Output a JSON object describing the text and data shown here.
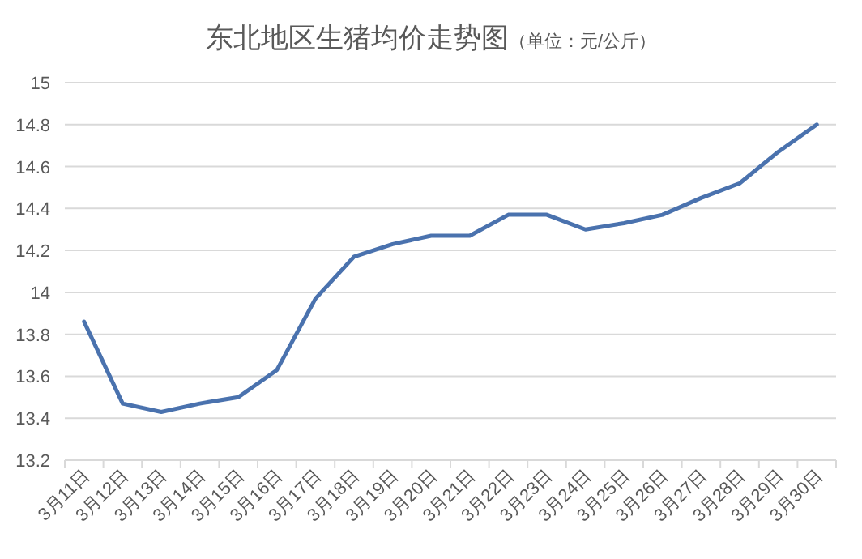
{
  "chart_data": {
    "type": "line",
    "title": "东北地区生猪均价走势图",
    "subtitle": "（单位：元/公斤）",
    "categories": [
      "3月11日",
      "3月12日",
      "3月13日",
      "3月14日",
      "3月15日",
      "3月16日",
      "3月17日",
      "3月18日",
      "3月19日",
      "3月20日",
      "3月21日",
      "3月22日",
      "3月23日",
      "3月24日",
      "3月25日",
      "3月26日",
      "3月27日",
      "3月28日",
      "3月29日",
      "3月30日"
    ],
    "series": [
      {
        "color": "#4a72ae",
        "values": [
          13.86,
          13.47,
          13.43,
          13.47,
          13.5,
          13.63,
          13.97,
          14.17,
          14.23,
          14.27,
          14.27,
          14.37,
          14.37,
          14.3,
          14.33,
          14.37,
          14.45,
          14.52,
          14.67,
          14.8
        ]
      }
    ],
    "ylim": [
      13.2,
      15
    ],
    "yticks": [
      13.2,
      13.4,
      13.6,
      13.8,
      14,
      14.2,
      14.4,
      14.6,
      14.8,
      15
    ],
    "grid": "y",
    "marker": "none",
    "line_style": "solid"
  }
}
